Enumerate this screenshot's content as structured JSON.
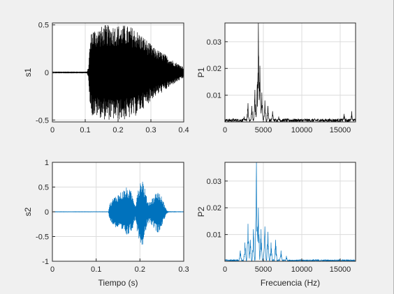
{
  "window": {
    "background": "#f0f0f0",
    "axes_background": "#ffffff",
    "grid": true
  },
  "colors": {
    "black_signal": "#000000",
    "blue_signal": "#0072bd"
  },
  "chart_data": [
    {
      "id": "s1",
      "type": "line",
      "title": "",
      "xlabel": "",
      "ylabel": "s1",
      "xlim": [
        0,
        0.4
      ],
      "ylim": [
        -0.52,
        0.52
      ],
      "xticks": [
        0,
        0.1,
        0.2,
        0.3,
        0.4
      ],
      "xticklabels": [
        "0",
        "0.1",
        "0.2",
        "0.3",
        "0.4"
      ],
      "yticks": [
        -0.5,
        0,
        0.5
      ],
      "yticklabels": [
        "-0.5",
        "0",
        "0.5"
      ],
      "color": "#000000",
      "series": [
        {
          "kind": "waveform",
          "sample_rate_hz": 2000,
          "envelope_points": [
            [
              0,
              0.003
            ],
            [
              0.105,
              0.003
            ],
            [
              0.11,
              0.06
            ],
            [
              0.115,
              0.35
            ],
            [
              0.12,
              0.46
            ],
            [
              0.14,
              0.47
            ],
            [
              0.16,
              0.5
            ],
            [
              0.19,
              0.5
            ],
            [
              0.22,
              0.5
            ],
            [
              0.25,
              0.47
            ],
            [
              0.28,
              0.37
            ],
            [
              0.31,
              0.26
            ],
            [
              0.34,
              0.2
            ],
            [
              0.37,
              0.12
            ],
            [
              0.4,
              0.06
            ]
          ]
        }
      ]
    },
    {
      "id": "P1",
      "type": "line",
      "title": "",
      "xlabel": "",
      "ylabel": "P1",
      "xlim": [
        0,
        17000
      ],
      "ylim": [
        0,
        0.037
      ],
      "xticks": [
        0,
        5000,
        10000,
        15000
      ],
      "xticklabels": [
        "0",
        "5000",
        "10000",
        "15000"
      ],
      "yticks": [
        0.01,
        0.02,
        0.03
      ],
      "yticklabels": [
        "0.01",
        "0.02",
        "0.03"
      ],
      "color": "#000000",
      "series": [
        {
          "kind": "spectrum",
          "peaks": [
            [
              2500,
              0.002
            ],
            [
              3000,
              0.007
            ],
            [
              3500,
              0.006
            ],
            [
              3900,
              0.012
            ],
            [
              4200,
              0.014
            ],
            [
              4350,
              0.037
            ],
            [
              4550,
              0.021
            ],
            [
              4800,
              0.011
            ],
            [
              5200,
              0.008
            ],
            [
              5600,
              0.006
            ],
            [
              6200,
              0.004
            ],
            [
              7000,
              0.002
            ],
            [
              15500,
              0.003
            ],
            [
              16500,
              0.004
            ]
          ],
          "noise_floor": 0.0012
        }
      ]
    },
    {
      "id": "s2",
      "type": "line",
      "title": "",
      "xlabel": "Tiempo (s)",
      "ylabel": "s2",
      "xlim": [
        0,
        0.3
      ],
      "ylim": [
        -1,
        1
      ],
      "xticks": [
        0,
        0.1,
        0.2,
        0.3
      ],
      "xticklabels": [
        "0",
        "0.1",
        "0.2",
        "0.3"
      ],
      "yticks": [
        -1,
        -0.5,
        0,
        0.5,
        1
      ],
      "yticklabels": [
        "-1",
        "-0.5",
        "0",
        "0.5",
        "1"
      ],
      "color": "#0072bd",
      "series": [
        {
          "kind": "waveform",
          "sample_rate_hz": 2000,
          "envelope_points": [
            [
              0,
              0.003
            ],
            [
              0.128,
              0.003
            ],
            [
              0.13,
              0.15
            ],
            [
              0.14,
              0.3
            ],
            [
              0.155,
              0.4
            ],
            [
              0.17,
              0.5
            ],
            [
              0.18,
              0.42
            ],
            [
              0.19,
              0.15
            ],
            [
              0.195,
              0.5
            ],
            [
              0.205,
              0.72
            ],
            [
              0.215,
              0.32
            ],
            [
              0.22,
              0.2
            ],
            [
              0.23,
              0.3
            ],
            [
              0.24,
              0.45
            ],
            [
              0.25,
              0.3
            ],
            [
              0.26,
              0.05
            ],
            [
              0.265,
              0.005
            ],
            [
              0.3,
              0.003
            ]
          ]
        }
      ]
    },
    {
      "id": "P2",
      "type": "line",
      "title": "",
      "xlabel": "Frecuencia (Hz)",
      "ylabel": "P2",
      "xlim": [
        0,
        17000
      ],
      "ylim": [
        0,
        0.037
      ],
      "xticks": [
        0,
        5000,
        10000,
        15000
      ],
      "xticklabels": [
        "0",
        "5000",
        "10000",
        "15000"
      ],
      "yticks": [
        0.01,
        0.02,
        0.03
      ],
      "yticklabels": [
        "0.01",
        "0.02",
        "0.03"
      ],
      "color": "#0072bd",
      "series": [
        {
          "kind": "spectrum",
          "peaks": [
            [
              2000,
              0.004
            ],
            [
              2600,
              0.007
            ],
            [
              3000,
              0.014
            ],
            [
              3300,
              0.008
            ],
            [
              3700,
              0.012
            ],
            [
              4100,
              0.037
            ],
            [
              4350,
              0.02
            ],
            [
              4700,
              0.012
            ],
            [
              5200,
              0.013
            ],
            [
              5600,
              0.011
            ],
            [
              6000,
              0.007
            ],
            [
              6600,
              0.008
            ],
            [
              7300,
              0.004
            ],
            [
              8000,
              0.002
            ]
          ],
          "noise_floor": 0.0006
        }
      ]
    }
  ]
}
